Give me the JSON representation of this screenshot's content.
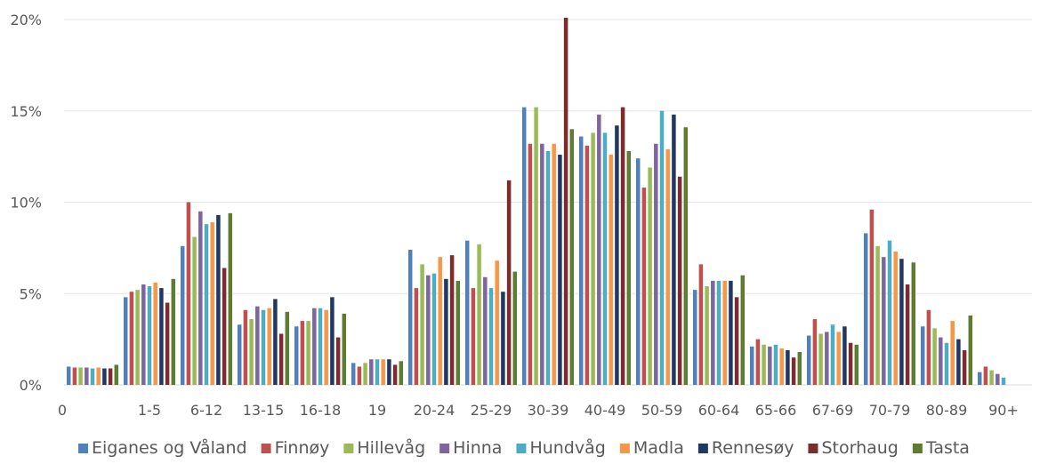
{
  "chart_data": {
    "type": "bar",
    "title": "",
    "xlabel": "",
    "ylabel": "",
    "ylim": [
      0,
      20
    ],
    "y_ticks": [
      "0%",
      "5%",
      "10%",
      "15%",
      "20%"
    ],
    "y_tick_values": [
      0,
      5,
      10,
      15,
      20
    ],
    "grid": true,
    "legend_position": "bottom",
    "categories": [
      "0",
      "1-5",
      "6-12",
      "13-15",
      "16-18",
      "19",
      "20-24",
      "25-29",
      "30-39",
      "40-49",
      "50-59",
      "60-64",
      "65-66",
      "67-69",
      "70-79",
      "80-89",
      "90+"
    ],
    "series": [
      {
        "name": "Eiganes og Våland",
        "color": "#4e81bd",
        "values": [
          1.0,
          4.8,
          7.6,
          3.3,
          3.2,
          1.2,
          7.4,
          7.9,
          15.2,
          13.6,
          12.4,
          5.2,
          2.1,
          2.7,
          8.3,
          3.2,
          0.7
        ]
      },
      {
        "name": "Finnøy",
        "color": "#c0504d",
        "values": [
          0.95,
          5.1,
          10.0,
          4.1,
          3.5,
          1.0,
          5.3,
          5.3,
          13.2,
          13.1,
          10.8,
          6.6,
          2.5,
          3.6,
          9.6,
          4.1,
          1.0
        ]
      },
      {
        "name": "Hillevåg",
        "color": "#9bbb59",
        "values": [
          0.95,
          5.2,
          8.1,
          3.6,
          3.5,
          1.2,
          6.6,
          7.7,
          15.2,
          13.8,
          11.9,
          5.4,
          2.2,
          2.8,
          7.6,
          3.1,
          0.8
        ]
      },
      {
        "name": "Hinna",
        "color": "#8064a2",
        "values": [
          0.95,
          5.5,
          9.5,
          4.3,
          4.2,
          1.4,
          6.0,
          5.9,
          13.2,
          14.8,
          13.2,
          5.7,
          2.1,
          2.9,
          7.0,
          2.6,
          0.6
        ]
      },
      {
        "name": "Hundvåg",
        "color": "#4bacc6",
        "values": [
          0.9,
          5.4,
          8.8,
          4.1,
          4.2,
          1.4,
          6.1,
          5.3,
          12.8,
          13.8,
          15.0,
          5.7,
          2.2,
          3.3,
          7.9,
          2.3,
          0.4
        ]
      },
      {
        "name": "Madla",
        "color": "#f79646",
        "values": [
          0.95,
          5.6,
          8.9,
          4.2,
          4.1,
          1.4,
          7.0,
          6.8,
          13.2,
          12.6,
          12.9,
          5.7,
          2.0,
          2.9,
          7.3,
          3.5,
          0
        ]
      },
      {
        "name": "Rennesøy",
        "color": "#1f3864",
        "values": [
          0.9,
          5.3,
          9.3,
          4.7,
          4.8,
          1.4,
          5.8,
          5.1,
          12.6,
          14.2,
          14.8,
          5.7,
          1.9,
          3.2,
          6.9,
          2.5,
          0
        ]
      },
      {
        "name": "Storhaug",
        "color": "#7b2c2c",
        "values": [
          0.9,
          4.5,
          6.4,
          2.8,
          2.6,
          1.1,
          7.1,
          11.2,
          20.1,
          15.2,
          11.4,
          4.8,
          1.5,
          2.3,
          5.5,
          1.9,
          0
        ]
      },
      {
        "name": "Tasta",
        "color": "#5f7a32",
        "values": [
          1.1,
          5.8,
          9.4,
          4.0,
          3.9,
          1.3,
          5.7,
          6.2,
          14.0,
          12.8,
          14.1,
          6.0,
          1.8,
          2.2,
          6.7,
          3.8,
          0
        ]
      }
    ]
  }
}
